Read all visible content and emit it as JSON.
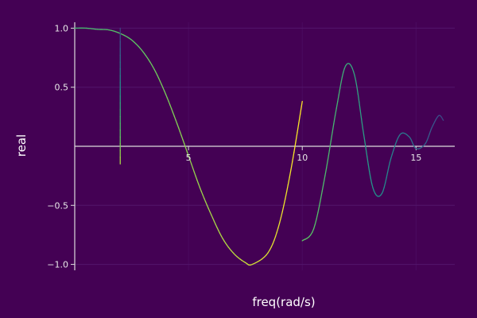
{
  "chart_data": {
    "type": "line",
    "xlabel": "freq(rad/s)",
    "ylabel": "real",
    "xlim": [
      0,
      16.7
    ],
    "ylim": [
      -1.05,
      1.05
    ],
    "x_ticks": [
      5,
      10,
      15
    ],
    "x_tick_labels": [
      "5",
      "10",
      "15"
    ],
    "y_ticks": [
      -1.0,
      -0.5,
      0.5,
      1.0
    ],
    "y_tick_labels": [
      "−1.0",
      "−0.5",
      "0.5",
      "1.0"
    ],
    "grid": true,
    "legend": "none",
    "colors": {
      "background": "#440154",
      "grid": "#52166b",
      "axis": "#dcdcdc",
      "gradient": [
        "#440154",
        "#3b528b",
        "#21918c",
        "#5ec962",
        "#fde725"
      ]
    },
    "series": [
      {
        "color_range": [
          0.65,
          1.0
        ],
        "x": [
          0.0,
          0.5,
          1.0,
          1.5,
          2.0,
          2.5,
          3.0,
          3.5,
          4.0,
          4.5,
          5.0,
          5.5,
          6.0,
          6.5,
          7.0,
          7.5,
          7.8,
          8.5,
          9.0,
          9.5,
          10.0
        ],
        "y": [
          1.0,
          1.0,
          0.99,
          0.985,
          0.955,
          0.9,
          0.8,
          0.65,
          0.44,
          0.19,
          -0.08,
          -0.35,
          -0.58,
          -0.78,
          -0.91,
          -0.985,
          -1.0,
          -0.9,
          -0.65,
          -0.2,
          0.38
        ]
      },
      {
        "color_range": [
          0.2,
          0.9
        ],
        "x": [
          2.0,
          2.0
        ],
        "y": [
          1.0,
          -0.15
        ]
      },
      {
        "color_range": [
          0.75,
          0.2
        ],
        "x": [
          10.0,
          10.5,
          11.0,
          11.5,
          11.9,
          12.3,
          12.7,
          13.1,
          13.5,
          13.9,
          14.3,
          14.7,
          15.0,
          15.4,
          15.7,
          16.0,
          16.2
        ],
        "y": [
          -0.8,
          -0.7,
          -0.25,
          0.32,
          0.68,
          0.6,
          0.1,
          -0.35,
          -0.4,
          -0.1,
          0.1,
          0.08,
          -0.02,
          0.02,
          0.16,
          0.26,
          0.22
        ]
      }
    ]
  }
}
